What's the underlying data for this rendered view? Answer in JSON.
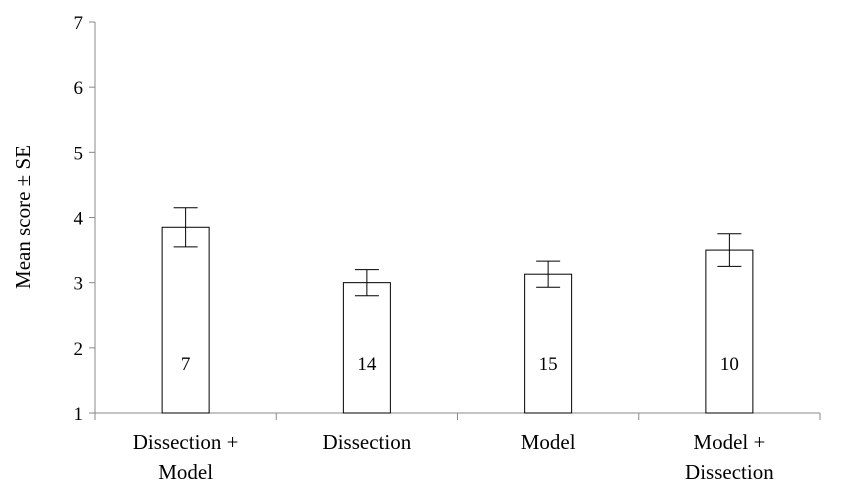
{
  "chart_data": {
    "type": "bar",
    "title": "",
    "xlabel": "",
    "ylabel": "Mean score ± SE",
    "ylim": [
      1,
      7
    ],
    "yticks": [
      1,
      2,
      3,
      4,
      5,
      6,
      7
    ],
    "grid": false,
    "legend": "none",
    "categories": [
      [
        "Dissection +",
        "Model"
      ],
      [
        "Dissection"
      ],
      [
        "Model"
      ],
      [
        "Model +",
        "Dissection"
      ]
    ],
    "series": [
      {
        "values": [
          3.85,
          3.0,
          3.13,
          3.5
        ],
        "errors": [
          0.3,
          0.2,
          0.2,
          0.25
        ],
        "bar_labels": [
          "7",
          "14",
          "15",
          "10"
        ]
      }
    ],
    "colors": {
      "bar_fill": "#ffffff",
      "bar_stroke": "#000000",
      "axis": "#888888"
    }
  }
}
